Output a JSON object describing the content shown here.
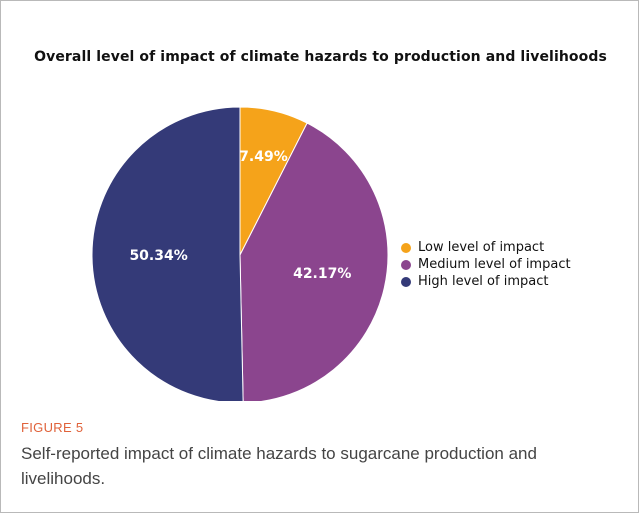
{
  "figure": {
    "label": "FIGURE 5",
    "caption": "Self-reported impact of climate hazards to sugarcane production and livelihoods."
  },
  "chart_data": {
    "type": "pie",
    "title": "Overall level of impact of climate hazards to production and livelihoods",
    "slices": [
      {
        "name": "Low level of impact",
        "value": 7.49,
        "label": "7.49%",
        "color": "#f5a31a"
      },
      {
        "name": "Medium level of impact",
        "value": 42.17,
        "label": "42.17%",
        "color": "#8b458e"
      },
      {
        "name": "High level of impact",
        "value": 50.34,
        "label": "50.34%",
        "color": "#343a78"
      }
    ],
    "start_angle_deg": 0,
    "direction": "clockwise",
    "legend_position": "right"
  }
}
